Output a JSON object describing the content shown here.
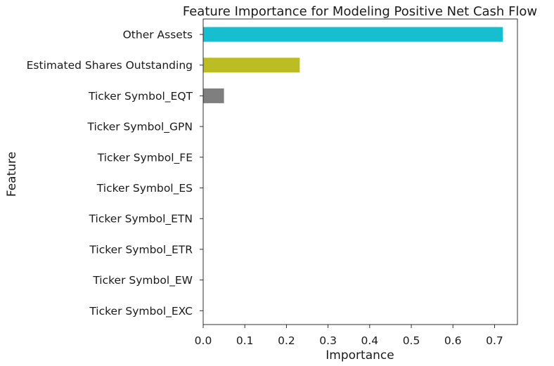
{
  "chart_data": {
    "type": "bar",
    "orientation": "horizontal",
    "title": "Feature Importance for Modeling Positive Net Cash Flow",
    "xlabel": "Importance",
    "ylabel": "Feature",
    "xlim": [
      0,
      0.755
    ],
    "x_ticks": [
      "0.0",
      "0.1",
      "0.2",
      "0.3",
      "0.4",
      "0.5",
      "0.6",
      "0.7"
    ],
    "grid": false,
    "legend": "none",
    "categories": [
      "Other Assets",
      "Estimated Shares Outstanding",
      "Ticker Symbol_EQT",
      "Ticker Symbol_GPN",
      "Ticker Symbol_FE",
      "Ticker Symbol_ES",
      "Ticker Symbol_ETN",
      "Ticker Symbol_ETR",
      "Ticker Symbol_EW",
      "Ticker Symbol_EXC"
    ],
    "values": [
      0.72,
      0.232,
      0.05,
      0,
      0,
      0,
      0,
      0,
      0,
      0
    ],
    "colors": [
      "#17becf",
      "#bcbd22",
      "#7f7f7f",
      "#c7c7c7",
      "#dbdb8d",
      "#9edae5",
      "#aec7e8",
      "#ffbb78",
      "#98df8a",
      "#ff9896"
    ]
  }
}
